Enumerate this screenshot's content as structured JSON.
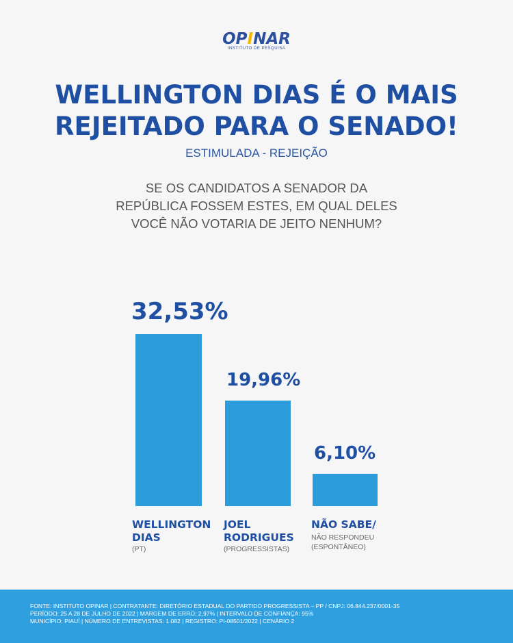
{
  "logo": {
    "name_left": "OP",
    "name_accent": "I",
    "name_right": "NAR",
    "tagline": "INSTITUTO DE PESQUISA"
  },
  "headline": {
    "line1": "WELLINGTON DIAS É O MAIS",
    "line2": "REJEITADO PARA O SENADO!"
  },
  "subtitle": "ESTIMULADA - REJEIÇÃO",
  "question": {
    "line1": "SE OS CANDIDATOS A SENADOR DA",
    "line2": "REPÚBLICA FOSSEM ESTES, EM QUAL DELES",
    "line3": "VOCÊ NÃO VOTARIA DE JEITO NENHUM?"
  },
  "chart_data": {
    "type": "bar",
    "categories": [
      "WELLINGTON DIAS",
      "JOEL RODRIGUES",
      "NÃO SABE/ NÃO RESPONDEU"
    ],
    "values": [
      32.53,
      19.96,
      6.1
    ],
    "value_labels": [
      "32,53%",
      "19,96%",
      "6,10%"
    ],
    "bar_color": "#2d9cdb",
    "ylim": [
      0,
      32.53
    ]
  },
  "candidates": [
    {
      "name_line1": "WELLINGTON",
      "name_line2": "DIAS",
      "detail": "(PT)"
    },
    {
      "name_line1": "JOEL",
      "name_line2": "RODRIGUES",
      "detail": "(PROGRESSISTAS)"
    },
    {
      "name_line1": "NÃO SABE/",
      "detail_line1": "NÃO RESPONDEU",
      "detail_line2": "(ESPONTÂNEO)"
    }
  ],
  "footer": {
    "line1": "FONTE: INSTITUTO OPINAR | CONTRATANTE: DIRETÓRIO ESTADUAL DO PARTIDO PROGRESSISTA – PP / CNPJ: 06.844.237/0001-35",
    "line2": "PERÍODO: 25 A 28 DE JULHO DE 2022 | MARGEM DE ERRO: 2,97% | INTERVALO DE CONFIANÇA: 95%",
    "line3": "MUNICÍPIO: PIAUÍ | NÚMERO DE ENTREVISTAS: 1.082 | REGISTRO: PI-08501/2022 | CENÁRIO 2"
  }
}
